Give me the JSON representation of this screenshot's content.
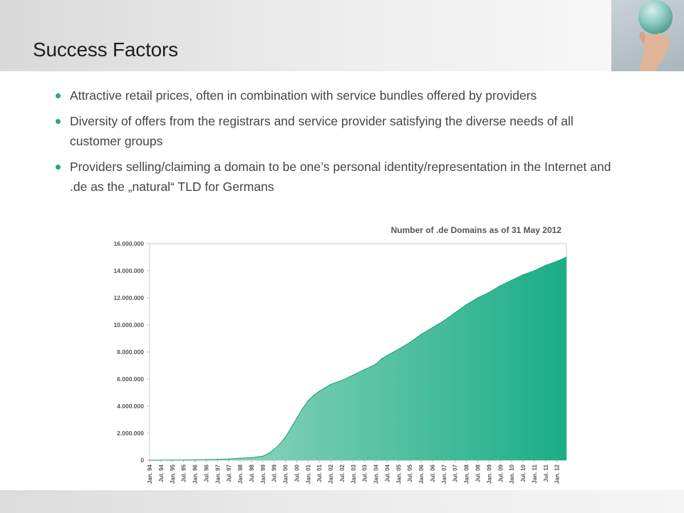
{
  "slide": {
    "title": "Success Factors",
    "accent_color": "#26a67f"
  },
  "bullets": [
    "Attractive retail prices, often in combination with service bundles offered by providers",
    "Diversity of offers from the registrars and service provider satisfying the diverse needs of all customer groups",
    "Providers selling/claiming a domain to be one’s personal identity/representation in the Internet and .de as the „natural“ TLD for Germans"
  ],
  "chart_data": {
    "type": "area",
    "title": "Number of .de Domains as of 31 May 2012",
    "xlabel": "",
    "ylabel": "",
    "ylim": [
      0,
      16000000
    ],
    "y_ticks": [
      "0",
      "2.000.000",
      "4.000.000",
      "6.000.000",
      "8.000.000",
      "10.000.000",
      "12.000.000",
      "14.000.000",
      "16.000.000"
    ],
    "categories": [
      "Jan. 94",
      "Jul. 94",
      "Jan. 95",
      "Jul. 95",
      "Jan. 96",
      "Jul. 96",
      "Jan. 97",
      "Jul. 97",
      "Jan. 98",
      "Jul. 98",
      "Jan. 99",
      "Jul. 99",
      "Jan. 00",
      "Jul. 00",
      "Jan. 01",
      "Jul. 01",
      "Jan. 02",
      "Jul. 02",
      "Jan. 03",
      "Jul. 03",
      "Jan. 04",
      "Jul. 04",
      "Jan. 05",
      "Jul. 05",
      "Jan. 06",
      "Jul. 06",
      "Jan. 07",
      "Jul. 07",
      "Jan. 08",
      "Jul. 08",
      "Jan. 09",
      "Jul. 09",
      "Jan. 10",
      "Jul. 10",
      "Jan. 11",
      "Jul. 11",
      "Jan. 12"
    ],
    "series": [
      {
        "x": [
          1994.0,
          1994.5,
          1995.0,
          1995.5,
          1996.0,
          1996.5,
          1997.0,
          1997.5,
          1998.0,
          1998.5,
          1999.0,
          1999.25,
          1999.5,
          1999.75,
          2000.0,
          2000.25,
          2000.5,
          2000.75,
          2001.0,
          2001.25,
          2001.5,
          2001.75,
          2002.0,
          2002.5,
          2003.0,
          2003.5,
          2004.0,
          2004.25,
          2004.5,
          2005.0,
          2005.5,
          2006.0,
          2006.5,
          2007.0,
          2007.5,
          2008.0,
          2008.5,
          2009.0,
          2009.5,
          2010.0,
          2010.5,
          2011.0,
          2011.5,
          2012.0,
          2012.42
        ],
        "values": [
          5000,
          10000,
          15000,
          20000,
          30000,
          45000,
          70000,
          100000,
          150000,
          200000,
          300000,
          500000,
          800000,
          1200000,
          1700000,
          2400000,
          3100000,
          3800000,
          4400000,
          4800000,
          5100000,
          5350000,
          5600000,
          5900000,
          6300000,
          6700000,
          7100000,
          7500000,
          7750000,
          8200000,
          8700000,
          9300000,
          9800000,
          10300000,
          10900000,
          11500000,
          12000000,
          12400000,
          12900000,
          13300000,
          13700000,
          14000000,
          14400000,
          14700000,
          15000000
        ],
        "color_start": "#a6dcc8",
        "color_end": "#1aae85"
      }
    ],
    "grid": false
  }
}
